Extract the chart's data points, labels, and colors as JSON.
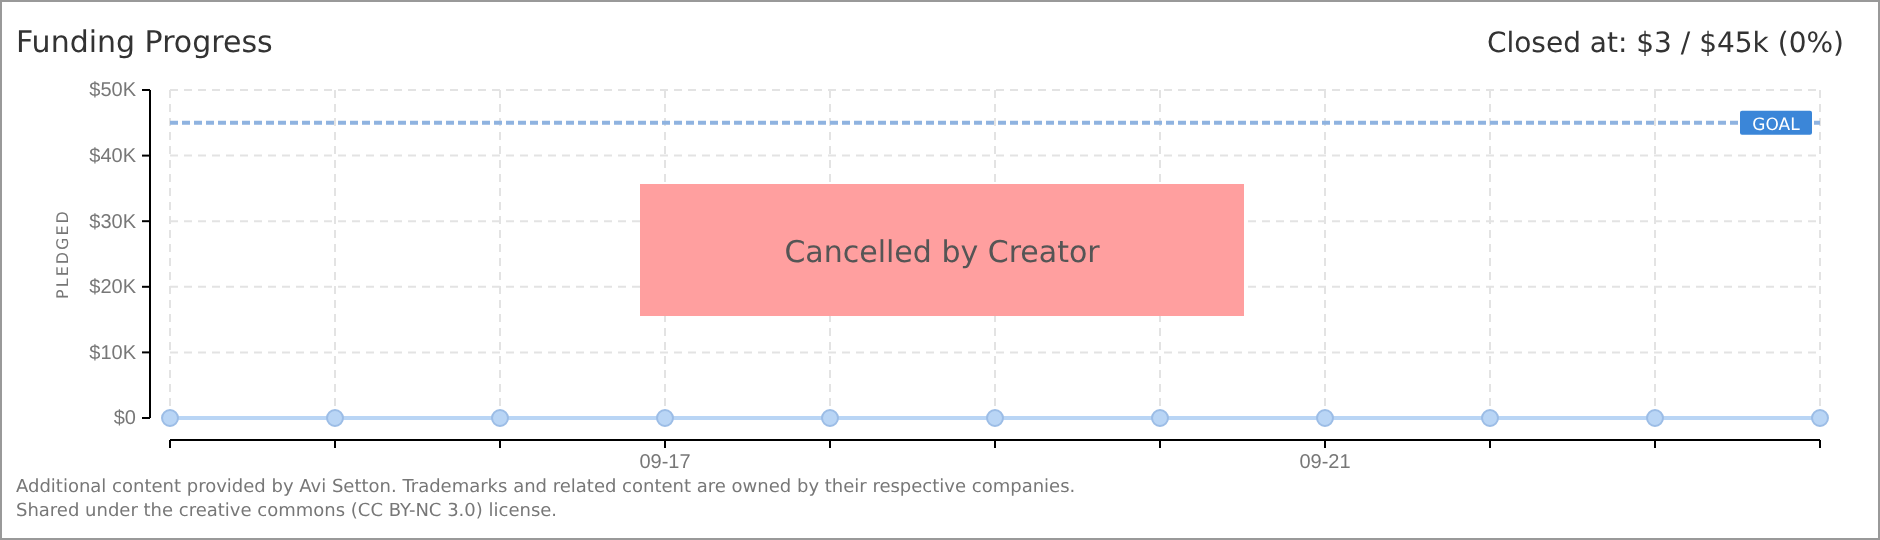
{
  "chart_data": {
    "type": "line",
    "title": "Funding Progress",
    "subtitle": "Closed at: $3 / $45k (0%)",
    "ylabel": "PLEDGED",
    "x": [
      "--09-14",
      "--09-15",
      "--09-16",
      "--09-17",
      "--09-18",
      "--09-19",
      "--09-20",
      "--09-21",
      "--09-22",
      "--09-23",
      "--09-24"
    ],
    "series": [
      {
        "color": "#b9d5f5",
        "values": [
          0,
          0,
          0,
          0,
          0,
          0,
          0,
          0,
          0,
          0,
          0
        ]
      }
    ],
    "marker": "circle",
    "grid": true,
    "xlim": [
      "--09-14",
      "--09-24"
    ],
    "xticks": [
      {
        "value": "--09-14",
        "label": null
      },
      {
        "value": "--09-15",
        "label": null
      },
      {
        "value": "--09-16",
        "label": null
      },
      {
        "value": "--09-17",
        "label": "09-17"
      },
      {
        "value": "--09-18",
        "label": null
      },
      {
        "value": "--09-19",
        "label": null
      },
      {
        "value": "--09-20",
        "label": null
      },
      {
        "value": "--09-21",
        "label": "09-21"
      },
      {
        "value": "--09-22",
        "label": null
      },
      {
        "value": "--09-23",
        "label": null
      },
      {
        "value": "--09-24",
        "label": null
      }
    ],
    "ylim": [
      0,
      50000
    ],
    "yticks": [
      {
        "value": 0,
        "label": "$0"
      },
      {
        "value": 10000,
        "label": "$10K"
      },
      {
        "value": 20000,
        "label": "$20K"
      },
      {
        "value": 30000,
        "label": "$30K"
      },
      {
        "value": 40000,
        "label": "$40K"
      },
      {
        "value": 50000,
        "label": "$50K"
      }
    ],
    "ref_lines": [
      {
        "axis": "y",
        "value": 45000,
        "label": "GOAL",
        "color": "#8fb3e0",
        "line_style": "dashed"
      }
    ],
    "annotations": [
      "Cancelled by Creator",
      "Additional content provided by Avi Setton. Trademarks and related content are owned by their respective companies.",
      "Shared under the creative commons (CC BY-NC 3.0) license."
    ]
  }
}
